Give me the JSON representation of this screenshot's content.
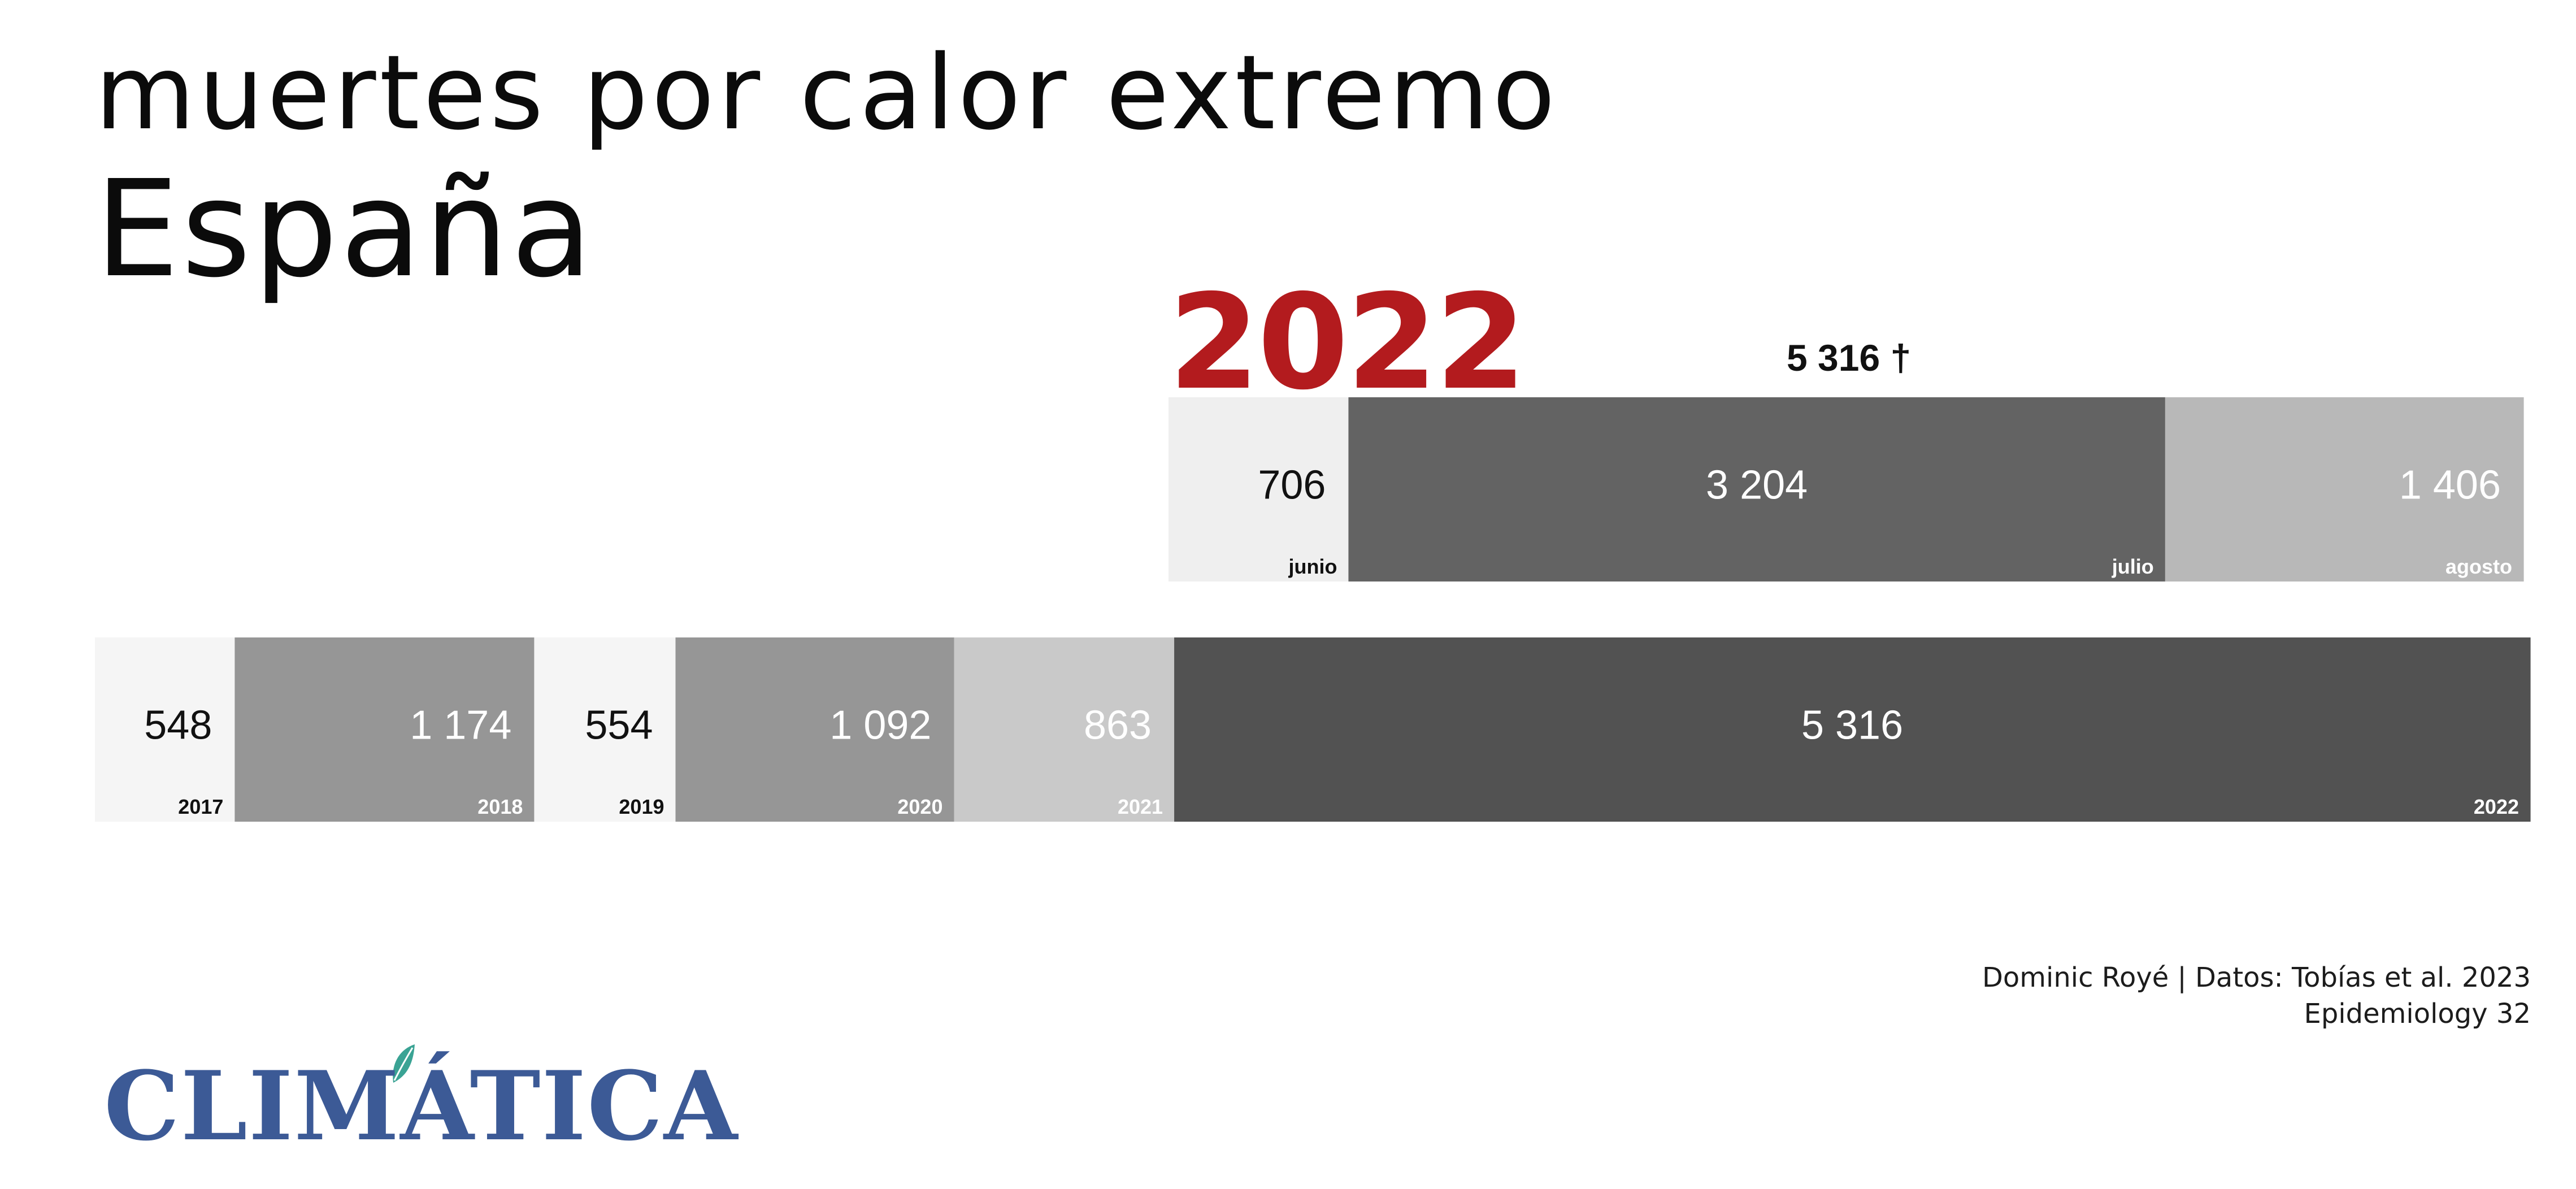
{
  "title": "muertes por calor extremo",
  "subtitle": "España",
  "highlight_year": "2022",
  "highlight_total": "5 316 †",
  "credit_line1": "Dominic Royé | Datos: Tobías et al. 2023",
  "credit_line2": "Epidemiology 32",
  "logo_text": "CLIMÁTICA",
  "colors": {
    "accent": "#b31b1e",
    "logo": "#3c5a96",
    "leaf": "#3aa394"
  },
  "chart_data": [
    {
      "type": "bar",
      "orientation": "horizontal-stacked",
      "name_shown": "",
      "categories": [
        "junio",
        "julio",
        "agosto"
      ],
      "values": [
        706,
        3204,
        1406
      ],
      "value_labels": [
        "706",
        "3 204",
        "1 406"
      ],
      "colors": [
        "#efefef",
        "#636363",
        "#b8b8b8"
      ],
      "value_colors": [
        "#111111",
        "#ffffff",
        "#ffffff"
      ],
      "category_colors": [
        "#111111",
        "#ffffff",
        "#ffffff"
      ],
      "total": 5316,
      "total_label": "5 316 †"
    },
    {
      "type": "bar",
      "orientation": "horizontal-stacked",
      "categories": [
        "2017",
        "2018",
        "2019",
        "2020",
        "2021",
        "2022"
      ],
      "values": [
        548,
        1174,
        554,
        1092,
        863,
        5316
      ],
      "value_labels": [
        "548",
        "1 174",
        "554",
        "1 092",
        "863",
        "5 316"
      ],
      "colors": [
        "#f5f5f5",
        "#969696",
        "#f5f5f5",
        "#969696",
        "#c9c9c9",
        "#525252"
      ],
      "value_colors": [
        "#111111",
        "#ffffff",
        "#111111",
        "#ffffff",
        "#ffffff",
        "#ffffff"
      ],
      "category_colors": [
        "#111111",
        "#ffffff",
        "#111111",
        "#ffffff",
        "#ffffff",
        "#ffffff"
      ]
    }
  ]
}
